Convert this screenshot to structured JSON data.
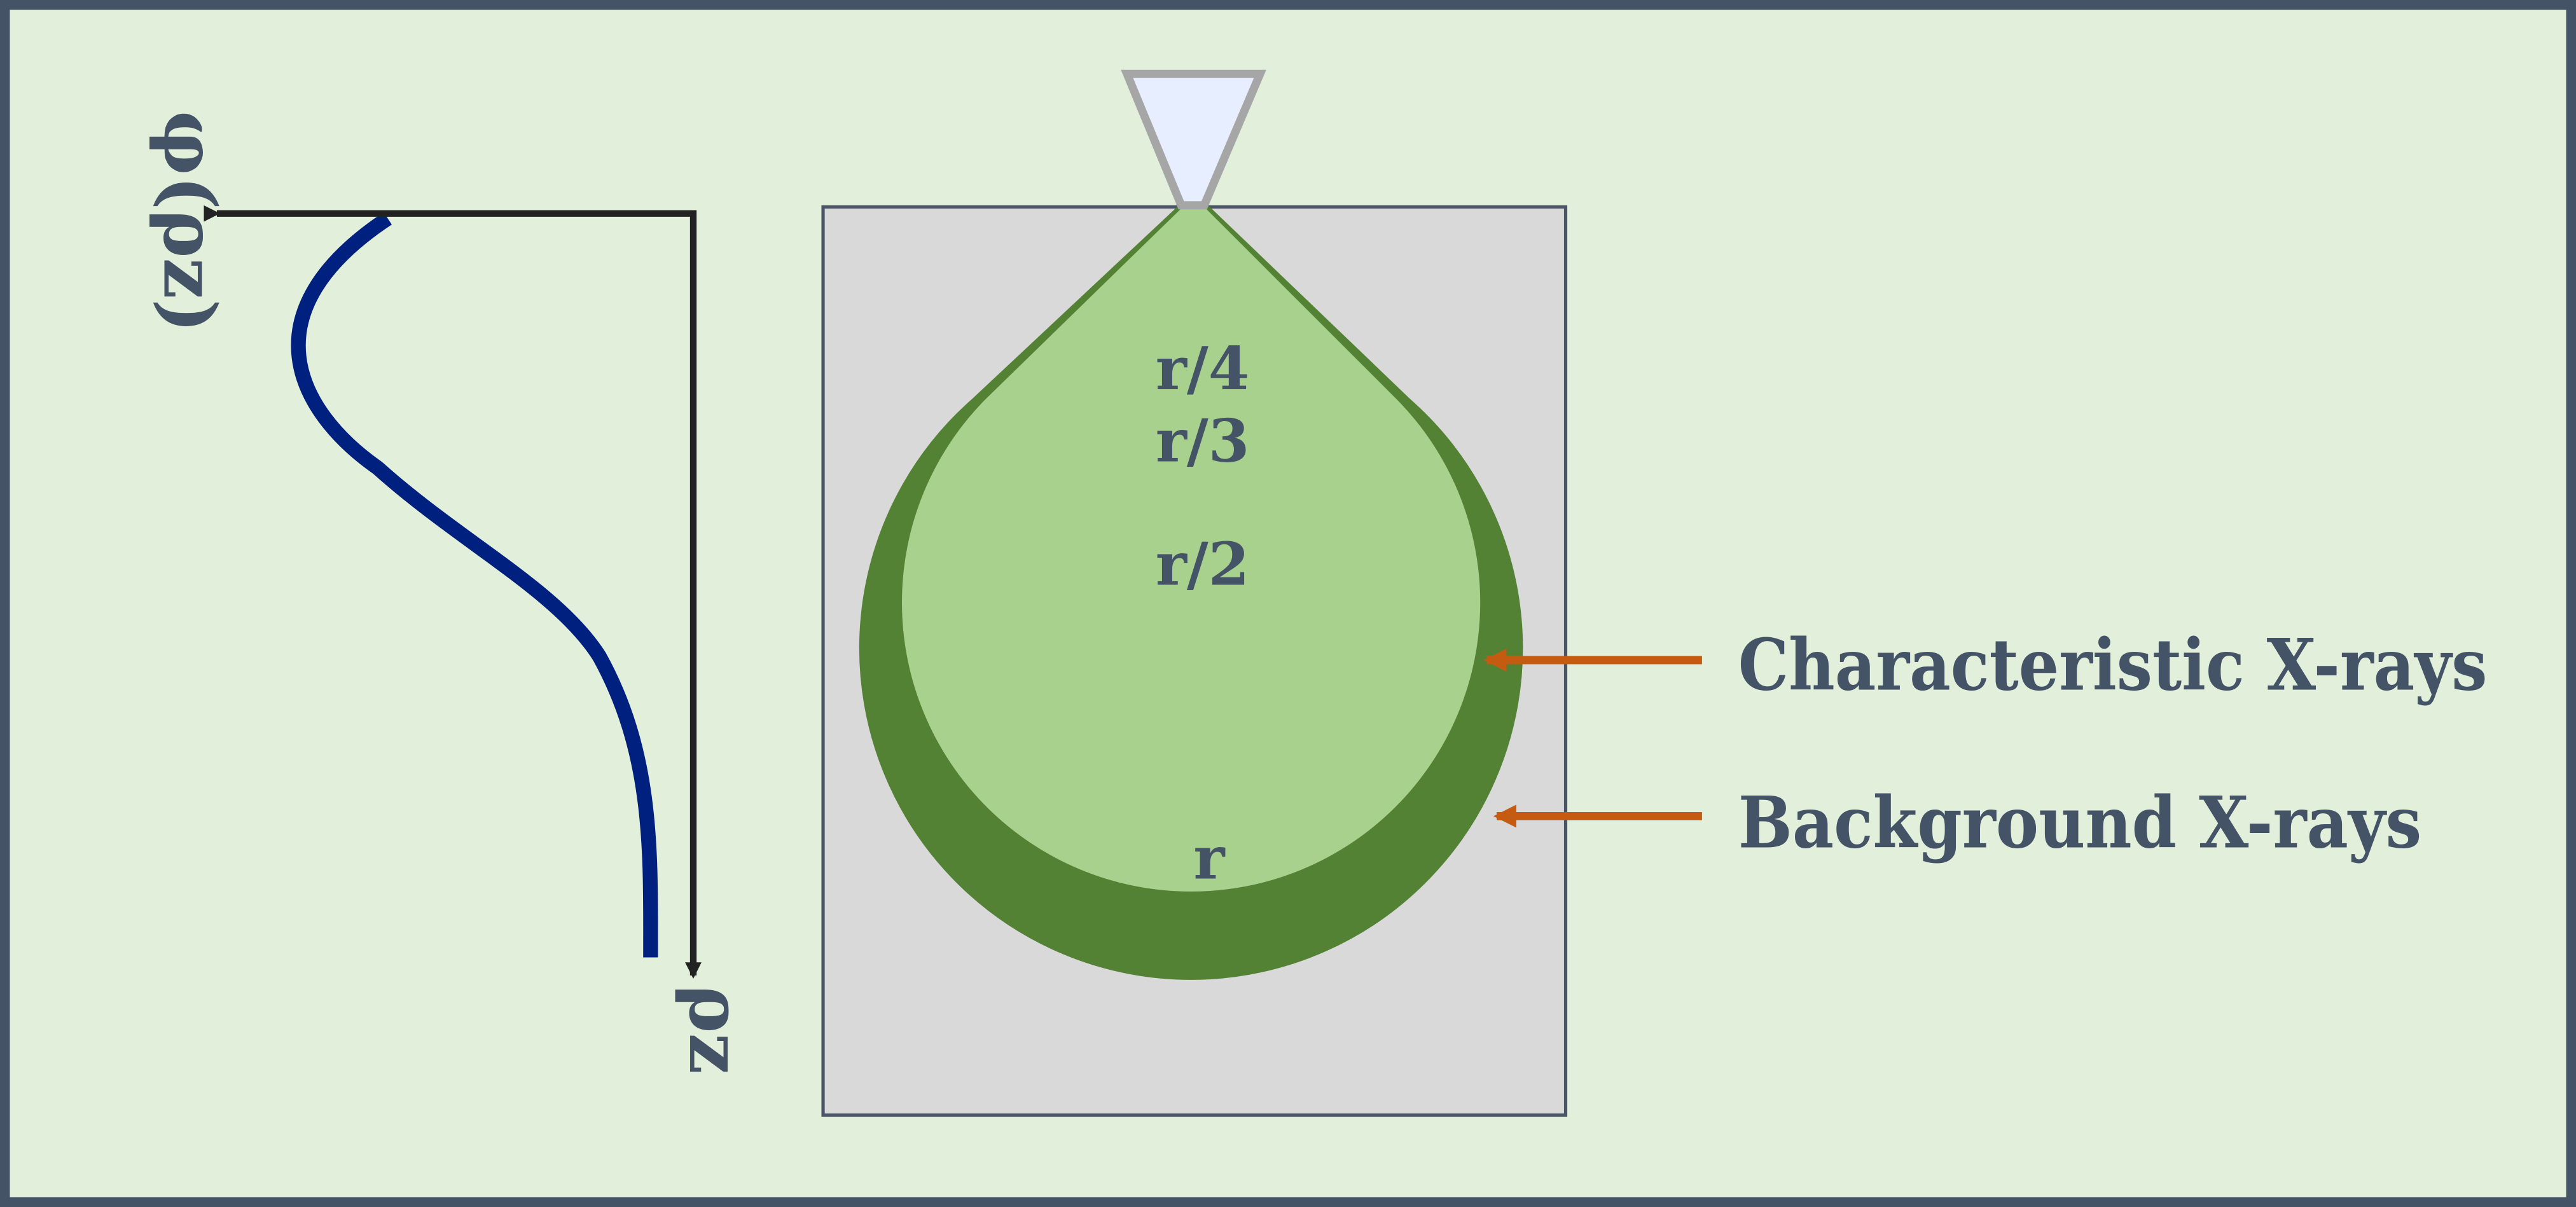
{
  "colors": {
    "page_background": "#e2efdb",
    "frame_border": "#445366",
    "specimen_fill": "#d9d9d9",
    "specimen_stroke": "#4a5568",
    "outer_volume": "#548235",
    "inner_volume": "#a9d18e",
    "beam_fill": "#e6eeff",
    "beam_stroke": "#a6a6a6",
    "curve": "#002080",
    "axis": "#222222",
    "arrow": "#c55a11",
    "text": "#445366"
  },
  "plot": {
    "y_axis_label": "φ(ρz)",
    "x_axis_label": "ρz"
  },
  "volume_labels": [
    "r/4",
    "r/3",
    "r/2",
    "r"
  ],
  "annotations": {
    "characteristic": "Characteristic X-rays",
    "background": "Background X-rays"
  },
  "icons": {
    "beam": "electron-beam-aperture-icon"
  }
}
